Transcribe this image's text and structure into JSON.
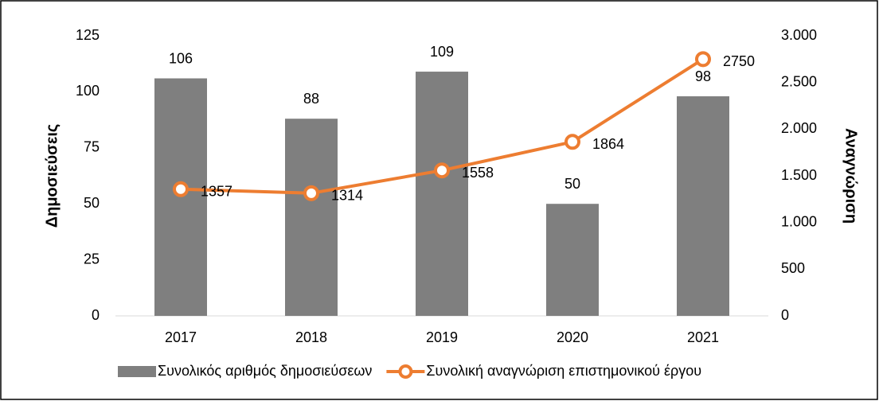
{
  "chart_data": {
    "type": "combo",
    "categories": [
      "2017",
      "2018",
      "2019",
      "2020",
      "2021"
    ],
    "series": [
      {
        "name": "Συνολικός αριθμός δημοσιεύσεων",
        "type": "bar",
        "color": "#7f7f7f",
        "values": [
          106,
          88,
          109,
          50,
          98
        ]
      },
      {
        "name": "Συνολική αναγνώριση επιστημονικού έργου",
        "type": "line",
        "axis": "y2",
        "color": "#ed7d31",
        "values": [
          1357,
          1314,
          1558,
          1864,
          2750
        ]
      }
    ],
    "y_label": "Δημοσιεύσεις",
    "y2_label": "Αναγνώριση",
    "ylim": [
      0,
      125
    ],
    "yticks": [
      0,
      25,
      50,
      75,
      100,
      125
    ],
    "y2lim": [
      0,
      3000
    ],
    "y2ticks": [
      0,
      500,
      {
        "value": 1000,
        "label": "1.000"
      },
      {
        "value": 1500,
        "label": "1.500"
      },
      {
        "value": 2000,
        "label": "2.000"
      },
      {
        "value": 2500,
        "label": "2.500"
      },
      {
        "value": 3000,
        "label": "3.000"
      }
    ],
    "grid": false,
    "legend": "bottom"
  }
}
